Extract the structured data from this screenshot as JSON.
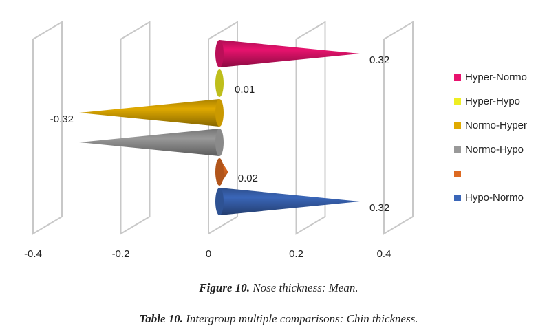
{
  "chart_data": {
    "type": "cone",
    "categories": [
      "Hyper-Normo",
      "Hyper-Hypo",
      "Normo-Hyper",
      "Normo-Hypo",
      null,
      "Hypo-Normo"
    ],
    "values": [
      0.32,
      0.01,
      -0.32,
      -0.32,
      0.02,
      0.32
    ],
    "value_labels": [
      "0.32",
      "0.01",
      "-0.32",
      null,
      "0.02",
      "0.32"
    ],
    "colors": [
      "#e8136e",
      "#eeee22",
      "#e0aa00",
      "#999999",
      "#dd6a22",
      "#3a66b8"
    ],
    "xlim": [
      -0.4,
      0.4
    ],
    "xticks": [
      -0.4,
      -0.2,
      0,
      0.2,
      0.4
    ],
    "grid": true,
    "legend": "right"
  },
  "captions": [
    {
      "label": "Figure 10.",
      "text": "Nose thickness: Mean."
    },
    {
      "label": "Table 10.",
      "text": "Intergroup multiple comparisons: Chin thickness."
    }
  ]
}
